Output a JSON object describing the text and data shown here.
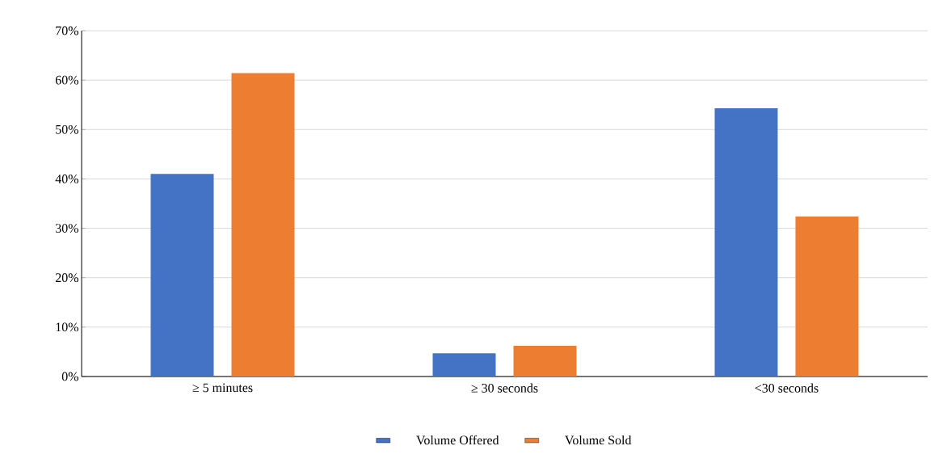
{
  "chart_data": {
    "type": "bar",
    "categories": [
      "≥ 5 minutes",
      "≥ 30 seconds",
      "<30 seconds"
    ],
    "series": [
      {
        "name": "Volume Offered",
        "color": "#4472c4",
        "values": [
          41,
          4.7,
          54.3
        ]
      },
      {
        "name": "Volume Sold",
        "color": "#ed7d31",
        "values": [
          61.4,
          6.2,
          32.4
        ]
      }
    ],
    "ylim": [
      0,
      70
    ],
    "yticks": [
      {
        "value": 0,
        "label": "0%"
      },
      {
        "value": 10,
        "label": "10%"
      },
      {
        "value": 20,
        "label": "20%"
      },
      {
        "value": 30,
        "label": "30%"
      },
      {
        "value": 40,
        "label": "40%"
      },
      {
        "value": 50,
        "label": "50%"
      },
      {
        "value": 60,
        "label": "60%"
      },
      {
        "value": 70,
        "label": "70%"
      }
    ],
    "grid": "y",
    "legend": "bottom"
  }
}
